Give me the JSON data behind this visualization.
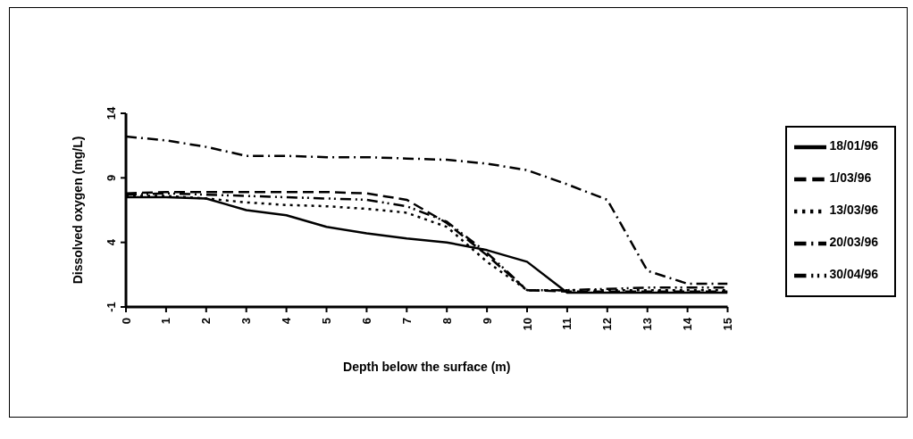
{
  "chart_data": {
    "type": "line",
    "xlabel": "Depth below the surface (m)",
    "ylabel": "Dissolved oxygen (mg/L)",
    "x": [
      0,
      1,
      2,
      3,
      4,
      5,
      6,
      7,
      8,
      9,
      10,
      11,
      12,
      13,
      14,
      15
    ],
    "xlim": [
      0,
      15
    ],
    "xticks": [
      0,
      1,
      2,
      3,
      4,
      5,
      6,
      7,
      8,
      9,
      10,
      11,
      12,
      13,
      14,
      15
    ],
    "ylim": [
      -1,
      14
    ],
    "yticks": [
      -1,
      4,
      9,
      14
    ],
    "grid": false,
    "legend": "right",
    "marker": "none",
    "series": [
      {
        "name": "18/01/96",
        "color": "#000000",
        "line_style": "solid",
        "values": [
          7.5,
          7.5,
          7.4,
          6.5,
          6.1,
          5.2,
          4.7,
          4.3,
          4.0,
          3.4,
          2.5,
          0.1,
          0.1,
          0.1,
          0.1,
          0.1
        ]
      },
      {
        "name": "1/03/96",
        "color": "#000000",
        "line_style": "dashed",
        "values": [
          7.8,
          7.9,
          7.9,
          7.9,
          7.9,
          7.9,
          7.8,
          7.3,
          5.5,
          3.0,
          0.3,
          0.2,
          0.2,
          0.2,
          0.2,
          0.2
        ]
      },
      {
        "name": "13/03/96",
        "color": "#000000",
        "line_style": "dotted",
        "values": [
          7.6,
          7.6,
          7.4,
          7.1,
          6.9,
          6.8,
          6.6,
          6.3,
          5.2,
          2.5,
          0.3,
          0.3,
          0.3,
          0.3,
          0.3,
          0.3
        ]
      },
      {
        "name": "20/03/96",
        "color": "#000000",
        "line_style": "dashdot",
        "values": [
          12.2,
          11.9,
          11.4,
          10.7,
          10.7,
          10.6,
          10.6,
          10.5,
          10.4,
          10.1,
          9.6,
          8.5,
          7.3,
          1.8,
          0.8,
          0.8
        ]
      },
      {
        "name": "30/04/96",
        "color": "#000000",
        "line_style": "dashdotdot",
        "values": [
          7.7,
          7.8,
          7.7,
          7.6,
          7.5,
          7.4,
          7.3,
          6.8,
          5.6,
          3.2,
          0.3,
          0.3,
          0.4,
          0.5,
          0.5,
          0.5
        ]
      }
    ]
  }
}
